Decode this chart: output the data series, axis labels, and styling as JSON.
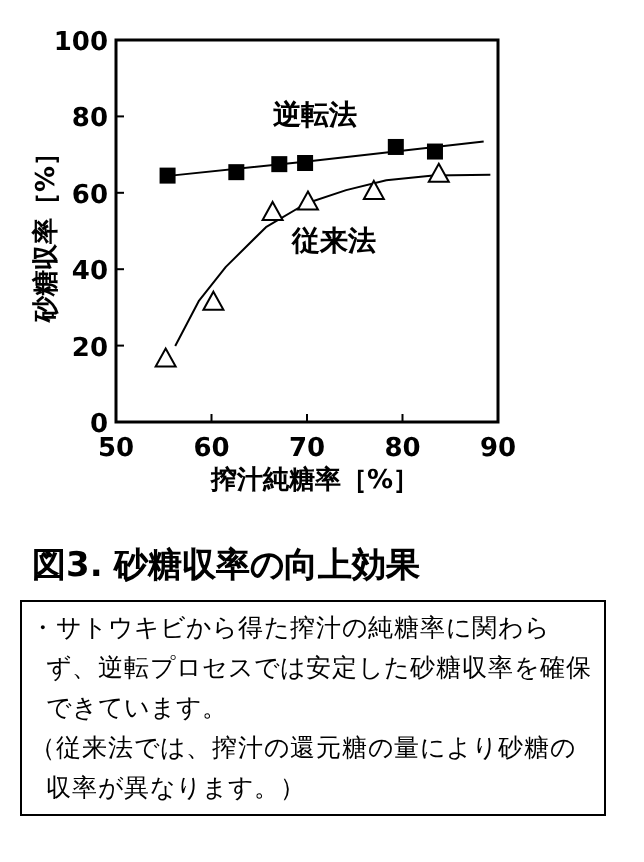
{
  "chart_data": {
    "type": "scatter",
    "title": "図3. 砂糖収率の向上効果",
    "xlabel": "搾汁純糖率［%］",
    "ylabel": "砂糖収率［%］",
    "xlim": [
      50,
      90
    ],
    "xticks": [
      50,
      60,
      70,
      80,
      90
    ],
    "ylim": [
      0,
      100
    ],
    "yticks": [
      0,
      20,
      40,
      60,
      80,
      100
    ],
    "grid": false,
    "series": [
      {
        "name": "逆転法",
        "type": "scatter",
        "marker": "square",
        "color": "#000000",
        "x": [
          55.4,
          62.6,
          67.1,
          69.8,
          79.3,
          83.4
        ],
        "values": [
          64.5,
          65.4,
          67.5,
          67.8,
          72,
          70.8
        ]
      },
      {
        "name": "従来法",
        "type": "scatter",
        "marker": "triangle",
        "color": "#000000",
        "x": [
          55.2,
          60.2,
          66.4,
          70.1,
          77,
          83.8
        ],
        "values": [
          16.6,
          31.5,
          55,
          57.7,
          60.5,
          65
        ]
      },
      {
        "type": "line",
        "color": "#000000",
        "x": [
          55,
          70,
          88.5
        ],
        "values": [
          64.3,
          68.2,
          73.4
        ]
      },
      {
        "type": "line",
        "color": "#000000",
        "x": [
          56.2,
          58.7,
          61.5,
          65.7,
          69.9,
          74.1,
          78.3,
          83.2,
          89.2
        ],
        "values": [
          19.9,
          31.8,
          40.6,
          51,
          57.2,
          60.7,
          63.3,
          64.5,
          64.7
        ]
      }
    ],
    "annotations": [
      "・サトウキビから得た搾汁の純糖率に関わらず、逆転プロセスでは安定した砂糖収率を確保できています。",
      "（従来法では、搾汁の還元糖の量により砂糖の収率が異なります。）"
    ]
  }
}
